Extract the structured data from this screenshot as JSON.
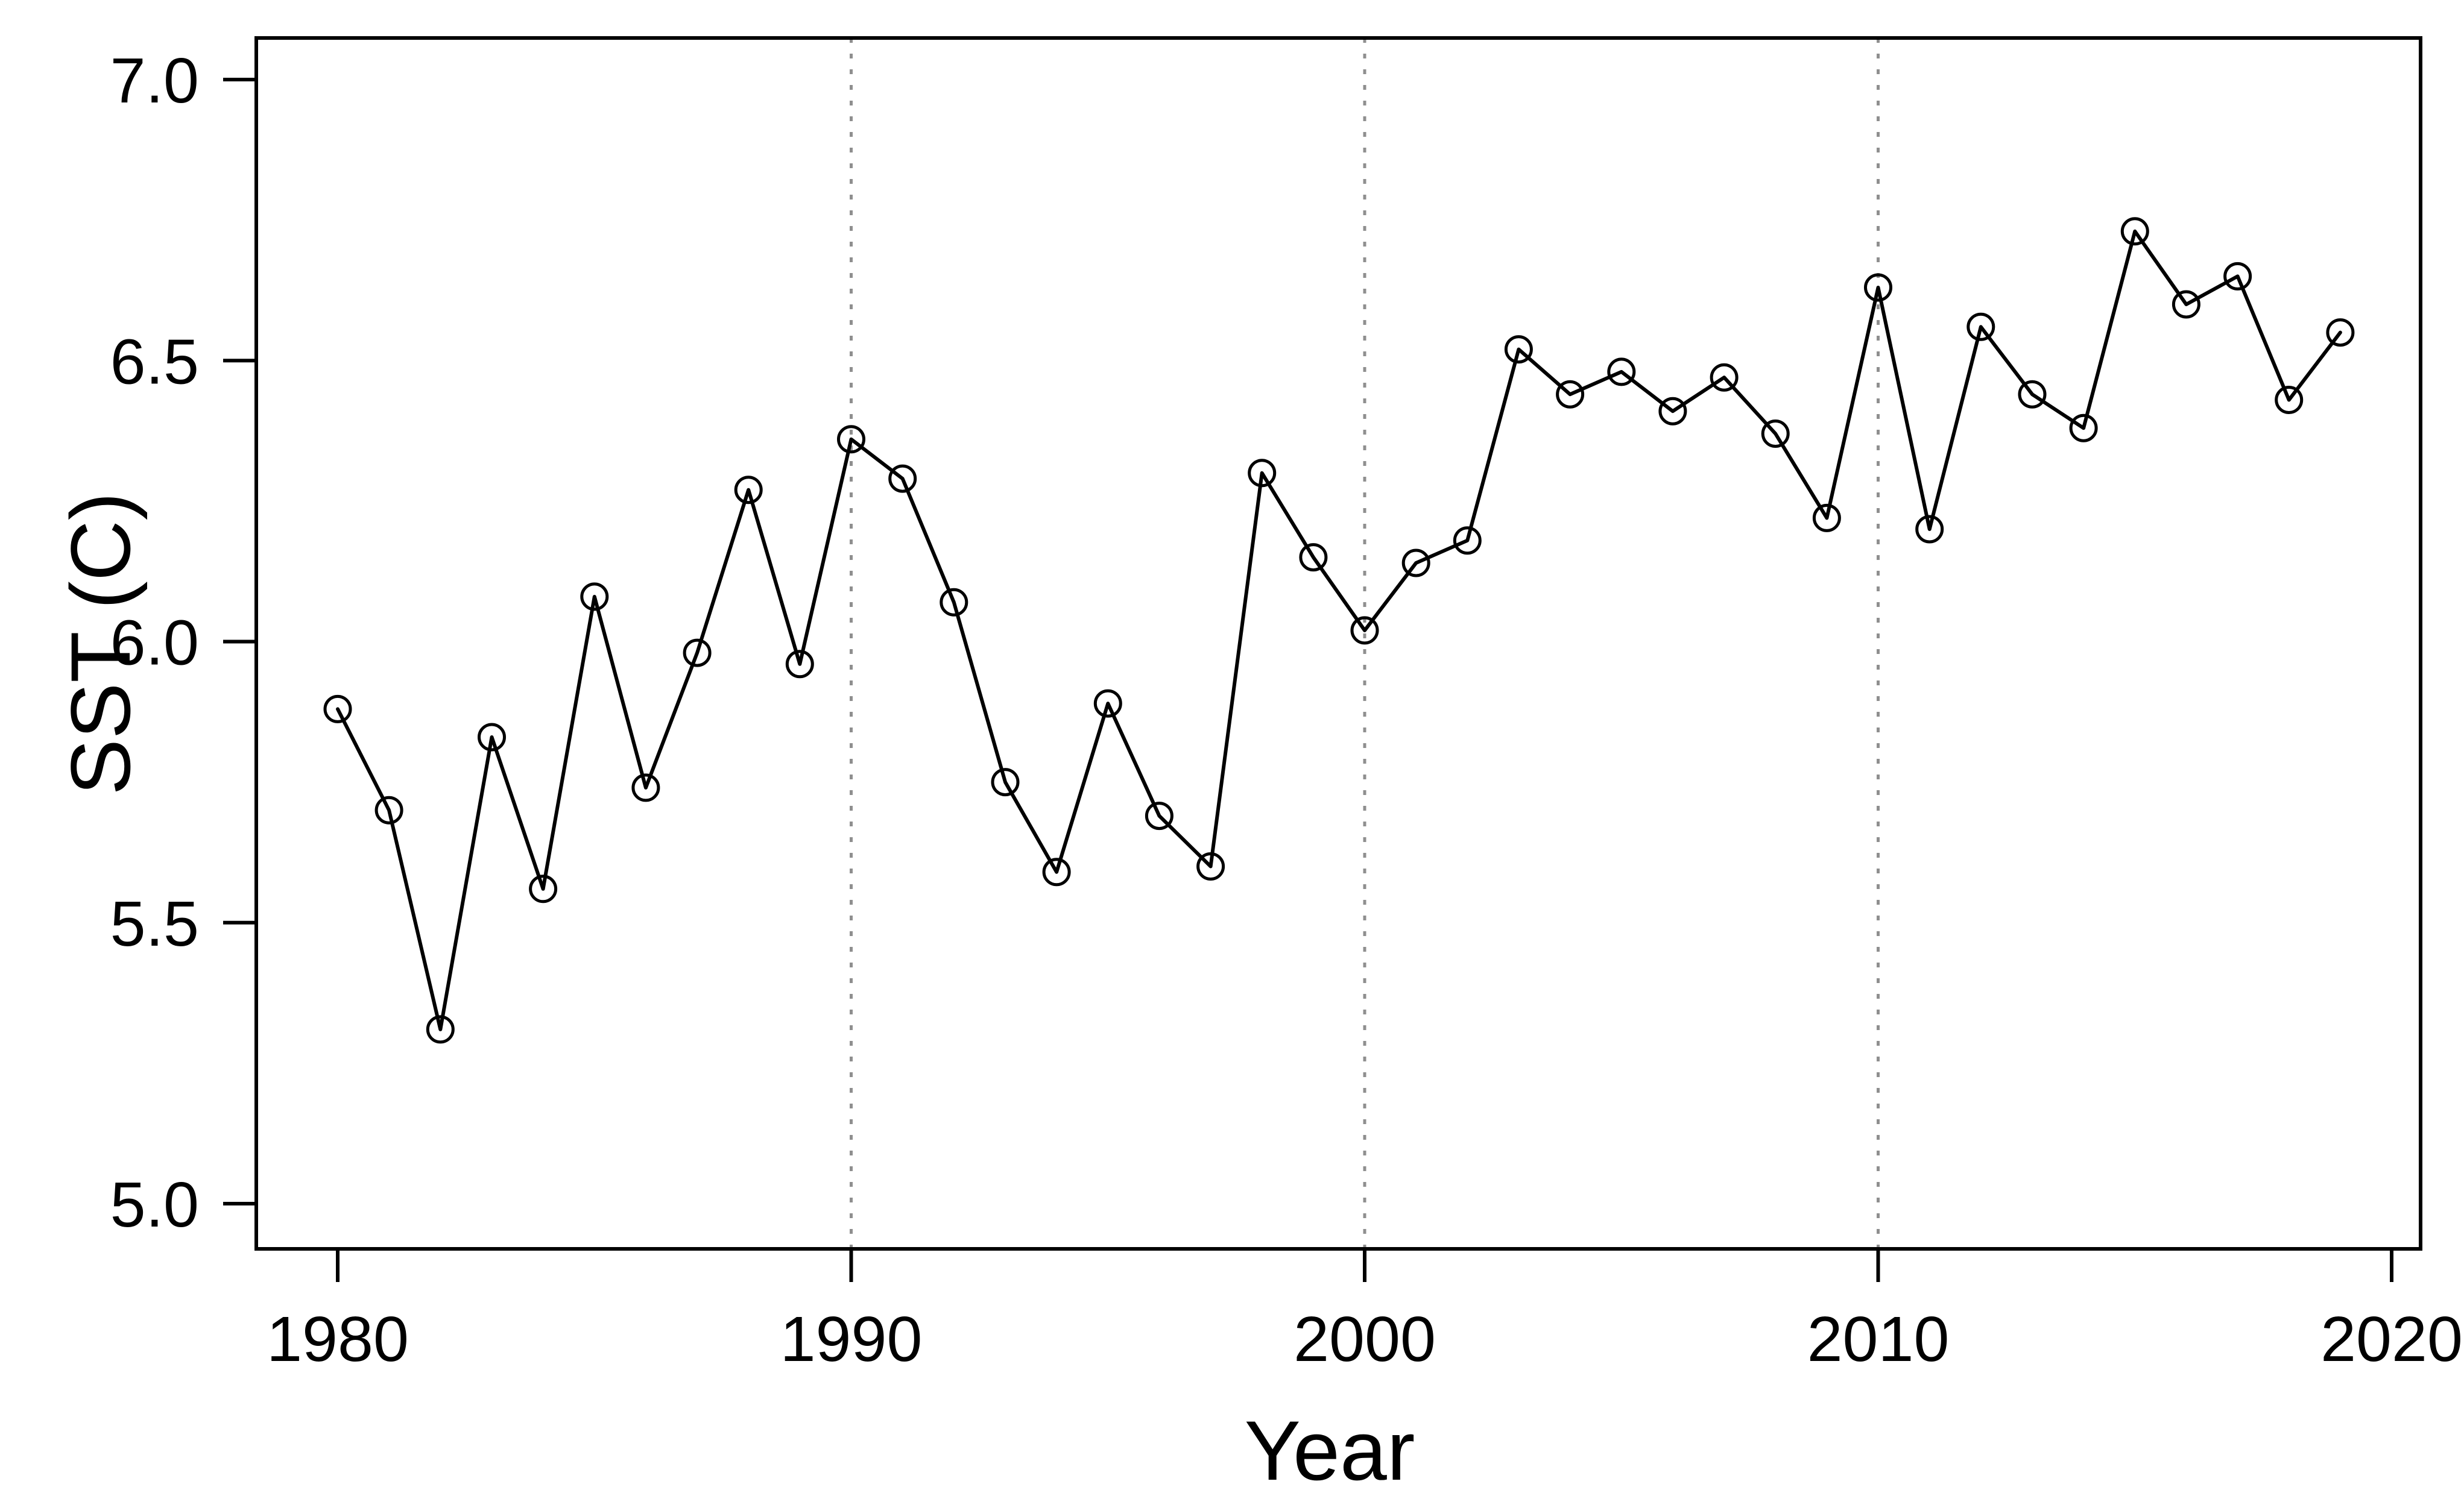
{
  "chart_data": {
    "type": "line",
    "title": "",
    "xlabel": "Year",
    "ylabel": "SST (C)",
    "x_ticks": [
      1980,
      1990,
      2000,
      2010,
      2020
    ],
    "y_ticks": [
      "7.0",
      "6.5",
      "6.0",
      "5.5",
      "5.0"
    ],
    "xlim": [
      1978.4,
      2020.6
    ],
    "ylim": [
      4.92,
      7.07
    ],
    "grid": "vertical dotted gridlines at decade ticks",
    "gridlines_x": [
      1990,
      2000,
      2010
    ],
    "legend": "none",
    "marker": "open-circle",
    "line_color": "#000000",
    "marker_color": "#000000",
    "gridline_color": "#8f8f8f",
    "background_color": "#ffffff",
    "x": [
      1980,
      1981,
      1982,
      1983,
      1984,
      1985,
      1986,
      1987,
      1988,
      1989,
      1990,
      1991,
      1992,
      1993,
      1994,
      1995,
      1996,
      1997,
      1998,
      1999,
      2000,
      2001,
      2002,
      2003,
      2004,
      2005,
      2006,
      2007,
      2008,
      2009,
      2010,
      2011,
      2012,
      2013,
      2014,
      2015,
      2016,
      2017,
      2018,
      2019
    ],
    "values": [
      5.88,
      5.7,
      5.31,
      5.83,
      5.56,
      6.08,
      5.74,
      5.98,
      6.27,
      5.96,
      6.36,
      6.29,
      6.07,
      5.75,
      5.59,
      5.89,
      5.69,
      5.6,
      6.3,
      6.15,
      6.02,
      6.14,
      6.18,
      6.52,
      6.44,
      6.48,
      6.41,
      6.47,
      6.37,
      6.22,
      6.63,
      6.2,
      6.56,
      6.44,
      6.38,
      6.73,
      6.6,
      6.65,
      6.43,
      6.55
    ]
  }
}
